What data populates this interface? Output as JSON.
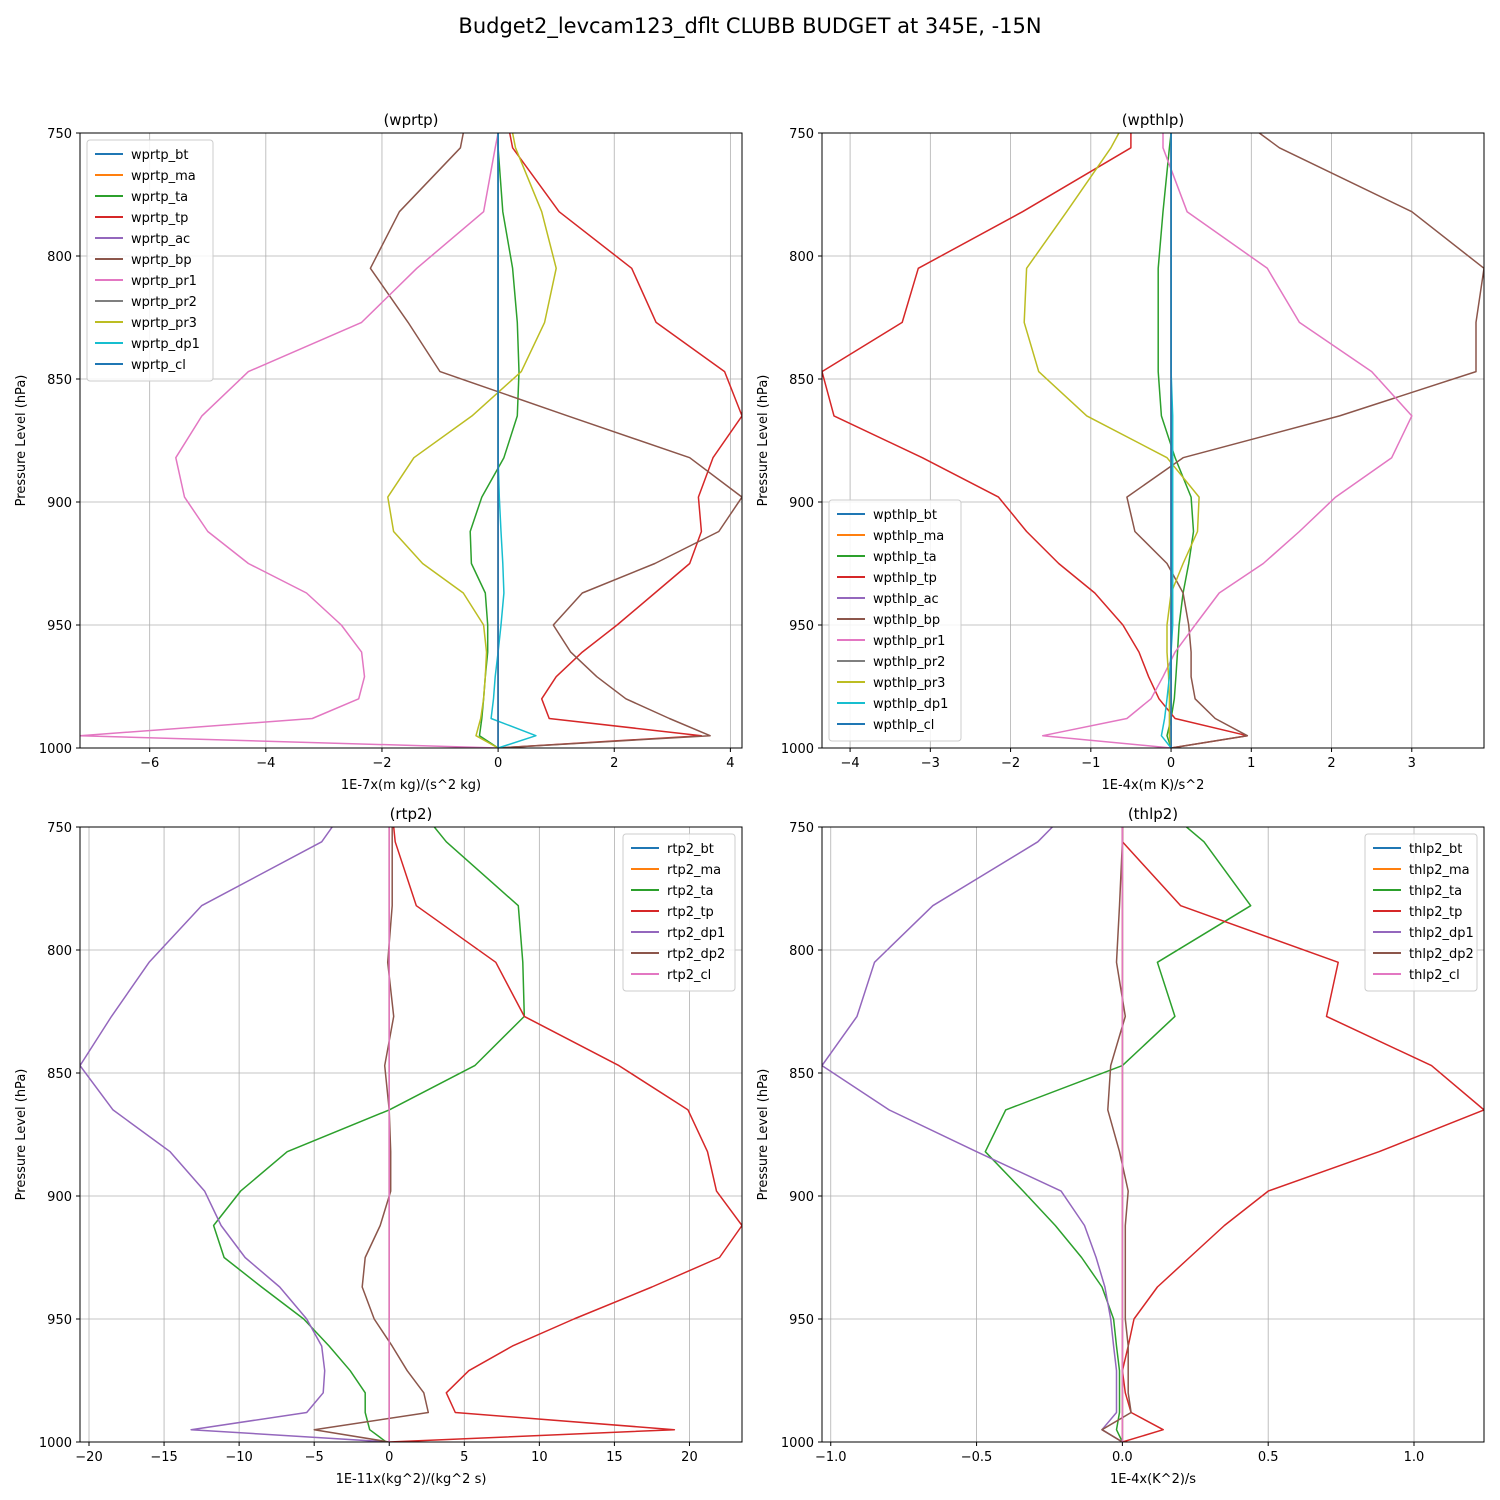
{
  "title": "Budget2_levcam123_dflt CLUBB BUDGET at 345E, -15N",
  "colors": [
    "#1f77b4",
    "#ff7f0e",
    "#2ca02c",
    "#d62728",
    "#9467bd",
    "#8c564b",
    "#e377c2",
    "#7f7f7f",
    "#bcbd22",
    "#17becf"
  ],
  "chart_data": [
    {
      "type": "line",
      "title": "(wprtp)",
      "xlabel": "1E-7x(m kg)/(s^2 kg)",
      "ylabel": "Pressure Level (hPa)",
      "xlim": [
        -7.2,
        4.2
      ],
      "ylim": [
        1000,
        750
      ],
      "xticks": [
        -6,
        -4,
        -2,
        0,
        2,
        4
      ],
      "xtick_labels": [
        "−6",
        "−4",
        "−2",
        "0",
        "2",
        "4"
      ],
      "yticks": [
        750,
        800,
        850,
        900,
        950,
        1000
      ],
      "legend": "upper left",
      "grid": true,
      "levels": [
        750,
        756,
        782,
        805,
        827,
        847,
        865,
        882,
        898,
        912,
        925,
        937,
        950,
        961,
        971,
        980,
        988,
        995,
        1000
      ],
      "series": [
        {
          "name": "wprtp_bt",
          "color": "#1f77b4",
          "values": [
            0,
            0,
            0,
            0,
            0,
            0,
            0,
            0,
            0,
            0,
            0,
            0,
            0,
            0,
            0,
            0,
            0,
            0,
            0
          ]
        },
        {
          "name": "wprtp_ma",
          "color": "#ff7f0e",
          "values": [
            0,
            0,
            0,
            0,
            0,
            0,
            0,
            0,
            0,
            0,
            0,
            0,
            0,
            0,
            0,
            0,
            0,
            0,
            0
          ]
        },
        {
          "name": "wprtp_ta",
          "color": "#2ca02c",
          "values": [
            0.0,
            0.0,
            0.08,
            0.25,
            0.33,
            0.36,
            0.33,
            0.1,
            -0.28,
            -0.48,
            -0.46,
            -0.22,
            -0.18,
            -0.18,
            -0.22,
            -0.25,
            -0.28,
            -0.32,
            0.0
          ]
        },
        {
          "name": "wprtp_tp",
          "color": "#d62728",
          "values": [
            0.2,
            0.25,
            1.05,
            2.3,
            2.72,
            3.9,
            4.2,
            3.7,
            3.45,
            3.5,
            3.3,
            2.7,
            2.05,
            1.45,
            1.0,
            0.75,
            0.88,
            3.5,
            0.0
          ]
        },
        {
          "name": "wprtp_ac",
          "color": "#9467bd",
          "values": [
            0,
            0,
            0,
            0,
            0,
            0,
            0,
            0,
            0,
            0,
            0,
            0,
            0,
            0,
            0,
            0,
            0,
            0,
            0
          ]
        },
        {
          "name": "wprtp_bp",
          "color": "#8c564b",
          "values": [
            -0.6,
            -0.65,
            -1.7,
            -2.2,
            -1.55,
            -1.0,
            1.2,
            3.3,
            4.2,
            3.8,
            2.7,
            1.45,
            0.95,
            1.25,
            1.7,
            2.2,
            2.95,
            3.65,
            0.0
          ]
        },
        {
          "name": "wprtp_pr1",
          "color": "#e377c2",
          "values": [
            0.0,
            -0.05,
            -0.25,
            -1.4,
            -2.35,
            -4.3,
            -5.1,
            -5.55,
            -5.4,
            -5.0,
            -4.3,
            -3.3,
            -2.7,
            -2.35,
            -2.3,
            -2.4,
            -3.2,
            -7.2,
            0.0
          ]
        },
        {
          "name": "wprtp_pr2",
          "color": "#7f7f7f",
          "values": [
            0,
            0,
            0,
            0,
            0,
            0,
            0,
            0,
            0,
            0,
            0,
            0,
            0,
            0,
            0,
            0,
            0,
            0,
            0
          ]
        },
        {
          "name": "wprtp_pr3",
          "color": "#bcbd22",
          "values": [
            0.25,
            0.3,
            0.75,
            1.0,
            0.8,
            0.4,
            -0.45,
            -1.45,
            -1.9,
            -1.8,
            -1.3,
            -0.6,
            -0.25,
            -0.2,
            -0.22,
            -0.25,
            -0.3,
            -0.38,
            0.0
          ]
        },
        {
          "name": "wprtp_dp1",
          "color": "#17becf",
          "values": [
            0.0,
            0.0,
            0.0,
            0.0,
            0.0,
            0.0,
            0.0,
            0.0,
            0.02,
            0.05,
            0.08,
            0.1,
            0.05,
            0.0,
            -0.05,
            -0.08,
            -0.12,
            0.65,
            0.0
          ]
        },
        {
          "name": "wprtp_cl",
          "color": "#1f77b4",
          "values": [
            0,
            0,
            0,
            0,
            0,
            0,
            0,
            0,
            0,
            0,
            0,
            0,
            0,
            0,
            0,
            0,
            0,
            0,
            0
          ]
        }
      ]
    },
    {
      "type": "line",
      "title": "(wpthlp)",
      "xlabel": "1E-4x(m K)/s^2",
      "ylabel": "Pressure Level (hPa)",
      "xlim": [
        -4.35,
        3.9
      ],
      "ylim": [
        1000,
        750
      ],
      "xticks": [
        -4,
        -3,
        -2,
        -1,
        0,
        1,
        2,
        3
      ],
      "xtick_labels": [
        "−4",
        "−3",
        "−2",
        "−1",
        "0",
        "1",
        "2",
        "3"
      ],
      "yticks": [
        750,
        800,
        850,
        900,
        950,
        1000
      ],
      "legend": "lower left",
      "grid": true,
      "levels": [
        750,
        756,
        782,
        805,
        827,
        847,
        865,
        882,
        898,
        912,
        925,
        937,
        950,
        961,
        971,
        980,
        988,
        995,
        1000
      ],
      "series": [
        {
          "name": "wpthlp_bt",
          "color": "#1f77b4",
          "values": [
            0,
            0,
            0,
            0,
            0,
            0,
            0,
            0,
            0,
            0,
            0,
            0,
            0,
            0,
            0,
            0,
            0,
            0,
            0
          ]
        },
        {
          "name": "wpthlp_ma",
          "color": "#ff7f0e",
          "values": [
            0,
            0,
            0,
            0,
            0,
            0,
            0,
            0,
            0,
            0,
            0,
            0,
            0,
            0,
            0,
            0,
            0,
            0,
            0
          ]
        },
        {
          "name": "wpthlp_ta",
          "color": "#2ca02c",
          "values": [
            0.0,
            -0.02,
            -0.1,
            -0.16,
            -0.16,
            -0.16,
            -0.12,
            0.05,
            0.25,
            0.28,
            0.22,
            0.15,
            0.1,
            0.08,
            0.06,
            0.04,
            0.0,
            -0.05,
            0.0
          ]
        },
        {
          "name": "wpthlp_tp",
          "color": "#d62728",
          "values": [
            -0.5,
            -0.5,
            -1.85,
            -3.15,
            -3.35,
            -4.35,
            -4.2,
            -3.1,
            -2.15,
            -1.8,
            -1.4,
            -0.95,
            -0.6,
            -0.4,
            -0.28,
            -0.15,
            0.05,
            0.95,
            0.0
          ]
        },
        {
          "name": "wpthlp_ac",
          "color": "#9467bd",
          "values": [
            0,
            0,
            0,
            0,
            0,
            0,
            0,
            0,
            0,
            0,
            0,
            0,
            0,
            0,
            0,
            0,
            0,
            0,
            0
          ]
        },
        {
          "name": "wpthlp_bp",
          "color": "#8c564b",
          "values": [
            1.1,
            1.35,
            3.0,
            3.9,
            3.8,
            3.8,
            2.1,
            0.15,
            -0.55,
            -0.45,
            -0.05,
            0.15,
            0.22,
            0.25,
            0.25,
            0.3,
            0.55,
            0.95,
            0.0
          ]
        },
        {
          "name": "wpthlp_pr1",
          "color": "#e377c2",
          "values": [
            -0.1,
            -0.1,
            0.2,
            1.2,
            1.6,
            2.5,
            3.0,
            2.75,
            2.05,
            1.6,
            1.15,
            0.6,
            0.3,
            0.05,
            -0.1,
            -0.25,
            -0.55,
            -1.6,
            0.0
          ]
        },
        {
          "name": "wpthlp_pr2",
          "color": "#7f7f7f",
          "values": [
            0,
            0,
            0,
            0,
            0,
            0,
            0,
            0,
            0,
            0,
            0,
            0,
            0,
            0,
            0,
            0,
            0,
            0,
            0
          ]
        },
        {
          "name": "wpthlp_pr3",
          "color": "#bcbd22",
          "values": [
            -0.65,
            -0.75,
            -1.3,
            -1.8,
            -1.83,
            -1.65,
            -1.05,
            -0.05,
            0.35,
            0.33,
            0.15,
            0.0,
            -0.05,
            -0.05,
            -0.03,
            -0.02,
            -0.02,
            -0.02,
            0.0
          ]
        },
        {
          "name": "wpthlp_dp1",
          "color": "#17becf",
          "values": [
            0.0,
            0.0,
            0.0,
            0.0,
            0.0,
            0.0,
            0.02,
            0.02,
            0.02,
            0.02,
            0.02,
            0.02,
            0.02,
            0.0,
            -0.02,
            -0.05,
            -0.08,
            -0.12,
            0.0
          ]
        },
        {
          "name": "wpthlp_cl",
          "color": "#1f77b4",
          "values": [
            0,
            0,
            0,
            0,
            0,
            0,
            0,
            0,
            0,
            0,
            0,
            0,
            0,
            0,
            0,
            0,
            0,
            0,
            0
          ]
        }
      ]
    },
    {
      "type": "line",
      "title": "(rtp2)",
      "xlabel": "1E-11x(kg^2)/(kg^2 s)",
      "ylabel": "Pressure Level (hPa)",
      "xlim": [
        -20.6,
        23.5
      ],
      "ylim": [
        1000,
        750
      ],
      "xticks": [
        -20,
        -15,
        -10,
        -5,
        0,
        5,
        10,
        15,
        20
      ],
      "xtick_labels": [
        "−20",
        "−15",
        "−10",
        "−5",
        "0",
        "5",
        "10",
        "15",
        "20"
      ],
      "yticks": [
        750,
        800,
        850,
        900,
        950,
        1000
      ],
      "legend": "upper right",
      "grid": true,
      "levels": [
        750,
        756,
        782,
        805,
        827,
        847,
        865,
        882,
        898,
        912,
        925,
        937,
        950,
        961,
        971,
        980,
        988,
        995,
        1000
      ],
      "series": [
        {
          "name": "rtp2_bt",
          "color": "#1f77b4",
          "values": [
            0,
            0,
            0,
            0,
            0,
            0,
            0,
            0,
            0,
            0,
            0,
            0,
            0,
            0,
            0,
            0,
            0,
            0,
            0
          ]
        },
        {
          "name": "rtp2_ma",
          "color": "#ff7f0e",
          "values": [
            0,
            0,
            0,
            0,
            0,
            0,
            0,
            0,
            0,
            0,
            0,
            0,
            0,
            0,
            0,
            0,
            0,
            0,
            0
          ]
        },
        {
          "name": "rtp2_ta",
          "color": "#2ca02c",
          "values": [
            3.0,
            3.8,
            8.6,
            8.9,
            9.0,
            5.7,
            0.0,
            -6.8,
            -9.9,
            -11.7,
            -11.0,
            -8.5,
            -5.7,
            -4.0,
            -2.6,
            -1.6,
            -1.6,
            -1.3,
            -0.2
          ]
        },
        {
          "name": "rtp2_tp",
          "color": "#d62728",
          "values": [
            0.3,
            0.4,
            1.8,
            7.1,
            9.0,
            15.3,
            19.9,
            21.2,
            21.8,
            23.5,
            22.0,
            17.5,
            12.3,
            8.2,
            5.3,
            3.8,
            4.4,
            19.0,
            0.0
          ]
        },
        {
          "name": "rtp2_dp1",
          "color": "#9467bd",
          "values": [
            -3.8,
            -4.5,
            -12.5,
            -16.0,
            -18.5,
            -20.6,
            -18.4,
            -14.6,
            -12.3,
            -11.2,
            -9.6,
            -7.3,
            -5.5,
            -4.5,
            -4.3,
            -4.4,
            -5.5,
            -13.2,
            0.0
          ]
        },
        {
          "name": "rtp2_dp2",
          "color": "#8c564b",
          "values": [
            0.2,
            0.2,
            0.2,
            -0.1,
            0.3,
            -0.3,
            0.0,
            0.1,
            0.1,
            -0.6,
            -1.6,
            -1.8,
            -1.0,
            0.2,
            1.2,
            2.3,
            2.6,
            -5.0,
            0.0
          ]
        },
        {
          "name": "rtp2_cl",
          "color": "#e377c2",
          "values": [
            0,
            0,
            0,
            0,
            0,
            0,
            0,
            0,
            0,
            0,
            0,
            0,
            0,
            0,
            0,
            0,
            0,
            0,
            0
          ]
        }
      ]
    },
    {
      "type": "line",
      "title": "(thlp2)",
      "xlabel": "1E-4x(K^2)/s",
      "ylabel": "Pressure Level (hPa)",
      "xlim": [
        -1.03,
        1.24
      ],
      "ylim": [
        1000,
        750
      ],
      "xticks": [
        -1.0,
        -0.5,
        0.0,
        0.5,
        1.0
      ],
      "xtick_labels": [
        "−1.0",
        "−0.5",
        "0.0",
        "0.5",
        "1.0"
      ],
      "yticks": [
        750,
        800,
        850,
        900,
        950,
        1000
      ],
      "legend": "upper right",
      "grid": true,
      "levels": [
        750,
        756,
        782,
        805,
        827,
        847,
        865,
        882,
        898,
        912,
        925,
        937,
        950,
        961,
        971,
        980,
        988,
        995,
        1000
      ],
      "series": [
        {
          "name": "thlp2_bt",
          "color": "#1f77b4",
          "values": [
            0,
            0,
            0,
            0,
            0,
            0,
            0,
            0,
            0,
            0,
            0,
            0,
            0,
            0,
            0,
            0,
            0,
            0,
            0
          ]
        },
        {
          "name": "thlp2_ma",
          "color": "#ff7f0e",
          "values": [
            0,
            0,
            0,
            0,
            0,
            0,
            0,
            0,
            0,
            0,
            0,
            0,
            0,
            0,
            0,
            0,
            0,
            0,
            0
          ]
        },
        {
          "name": "thlp2_ta",
          "color": "#2ca02c",
          "values": [
            0.22,
            0.28,
            0.44,
            0.12,
            0.18,
            0.0,
            -0.4,
            -0.47,
            -0.34,
            -0.23,
            -0.14,
            -0.07,
            -0.03,
            -0.02,
            -0.01,
            -0.01,
            -0.01,
            -0.02,
            0.0
          ]
        },
        {
          "name": "thlp2_tp",
          "color": "#d62728",
          "values": [
            0.0,
            0.0,
            0.2,
            0.74,
            0.7,
            1.06,
            1.24,
            0.88,
            0.5,
            0.35,
            0.23,
            0.12,
            0.04,
            0.02,
            0.0,
            0.01,
            0.03,
            0.14,
            0.0
          ]
        },
        {
          "name": "thlp2_dp1",
          "color": "#9467bd",
          "values": [
            -0.24,
            -0.29,
            -0.65,
            -0.85,
            -0.91,
            -1.03,
            -0.8,
            -0.5,
            -0.21,
            -0.13,
            -0.09,
            -0.06,
            -0.04,
            -0.03,
            -0.02,
            -0.02,
            -0.02,
            -0.07,
            0.0
          ]
        },
        {
          "name": "thlp2_dp2",
          "color": "#8c564b",
          "values": [
            0.0,
            0.0,
            -0.01,
            -0.02,
            0.01,
            -0.04,
            -0.05,
            -0.01,
            0.02,
            0.01,
            0.01,
            0.01,
            0.01,
            0.02,
            0.02,
            0.02,
            0.03,
            -0.07,
            0.0
          ]
        },
        {
          "name": "thlp2_cl",
          "color": "#e377c2",
          "values": [
            0,
            0,
            0,
            0,
            0,
            0,
            0,
            0,
            0,
            0,
            0,
            0,
            0,
            0,
            0,
            0,
            0,
            0,
            0
          ]
        }
      ]
    }
  ]
}
